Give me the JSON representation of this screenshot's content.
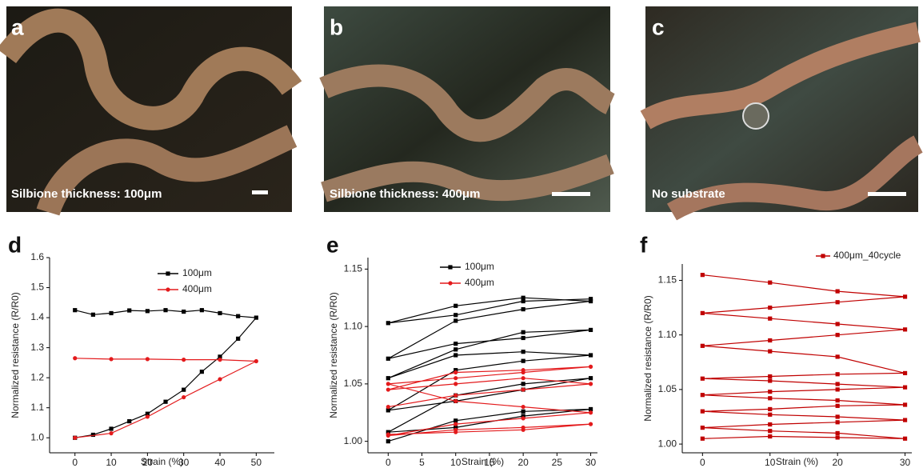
{
  "photos": [
    {
      "label": "a",
      "caption": "Silbione thickness: 100μm"
    },
    {
      "label": "b",
      "caption": "Silbione thickness: 400μm"
    },
    {
      "label": "c",
      "caption": "No substrate"
    }
  ],
  "chart_data": [
    {
      "type": "line",
      "label": "d",
      "xlabel": "Strain (%)",
      "ylabel": "Normalized resistance (R/R0)",
      "xlim": [
        -7,
        55
      ],
      "xticks": [
        0,
        10,
        20,
        30,
        40,
        50
      ],
      "ylim": [
        0.95,
        1.6
      ],
      "yticks": [
        {
          "value": 1.0,
          "label": "1.0"
        },
        {
          "value": 1.1,
          "label": "1.1"
        },
        {
          "value": 1.2,
          "label": "1.2"
        },
        {
          "value": 1.3,
          "label": "1.3"
        },
        {
          "value": 1.4,
          "label": "1.4"
        },
        {
          "value": 1.5,
          "label": "1.5"
        },
        {
          "value": 1.6,
          "label": "1.6"
        }
      ],
      "legend": "upper right",
      "series": [
        {
          "name": "100μm",
          "color": "#000000",
          "marker": "square",
          "x": [
            0,
            5,
            10,
            15,
            20,
            25,
            30,
            35,
            40,
            45,
            50,
            45,
            40,
            35,
            30,
            25,
            20,
            15,
            10,
            5,
            0
          ],
          "values": [
            1.0,
            1.01,
            1.03,
            1.055,
            1.08,
            1.12,
            1.16,
            1.22,
            1.27,
            1.33,
            1.4,
            1.405,
            1.415,
            1.425,
            1.42,
            1.425,
            1.422,
            1.424,
            1.415,
            1.41,
            1.425
          ]
        },
        {
          "name": "400μm",
          "color": "#e31a1c",
          "marker": "circle",
          "x": [
            0,
            10,
            20,
            30,
            40,
            50,
            40,
            30,
            20,
            10,
            0
          ],
          "values": [
            1.0,
            1.015,
            1.07,
            1.135,
            1.195,
            1.255,
            1.26,
            1.26,
            1.262,
            1.262,
            1.265
          ]
        }
      ]
    },
    {
      "type": "line",
      "label": "e",
      "xlabel": "Strain (%)",
      "ylabel": "Normalized resistance (R/R0)",
      "xlim": [
        -3,
        31
      ],
      "xticks": [
        0,
        5,
        10,
        15,
        20,
        25,
        30
      ],
      "ylim": [
        0.99,
        1.16
      ],
      "yticks": [
        {
          "value": 1.0,
          "label": "1.00"
        },
        {
          "value": 1.05,
          "label": "1.05"
        },
        {
          "value": 1.1,
          "label": "1.10"
        },
        {
          "value": 1.15,
          "label": "1.15"
        }
      ],
      "legend": "upper center",
      "series": [
        {
          "name": "100μm",
          "color": "#000000",
          "marker": "square",
          "x": [
            0,
            10,
            20,
            30,
            20,
            10,
            0,
            10,
            20,
            30,
            20,
            10,
            0,
            10,
            20,
            30,
            20,
            10,
            0,
            10,
            20,
            30,
            20,
            10,
            0,
            10,
            20,
            30,
            20,
            10,
            0,
            10,
            20,
            30
          ],
          "values": [
            1.0,
            1.018,
            1.026,
            1.028,
            1.022,
            1.012,
            1.008,
            1.04,
            1.05,
            1.055,
            1.045,
            1.035,
            1.027,
            1.062,
            1.07,
            1.075,
            1.078,
            1.075,
            1.055,
            1.08,
            1.095,
            1.097,
            1.09,
            1.085,
            1.072,
            1.105,
            1.115,
            1.122,
            1.125,
            1.118,
            1.103,
            1.11,
            1.122,
            1.124
          ]
        },
        {
          "name": "400μm",
          "color": "#e31a1c",
          "marker": "circle",
          "x": [
            0,
            10,
            20,
            30,
            20,
            10,
            0,
            10,
            20,
            30,
            20,
            10,
            0,
            10,
            20,
            30,
            20,
            10,
            0,
            10,
            20,
            30,
            20,
            10,
            0
          ],
          "values": [
            1.03,
            1.04,
            1.045,
            1.05,
            1.055,
            1.05,
            1.045,
            1.06,
            1.062,
            1.065,
            1.06,
            1.055,
            1.05,
            1.035,
            1.03,
            1.025,
            1.02,
            1.015,
            1.005,
            1.01,
            1.012,
            1.015,
            1.01,
            1.008,
            1.006
          ]
        }
      ]
    },
    {
      "type": "line",
      "label": "f",
      "xlabel": "Strain (%)",
      "ylabel": "Normalized resistance (R/R0)",
      "xlim": [
        -3,
        31
      ],
      "xticks": [
        0,
        10,
        20,
        30
      ],
      "ylim": [
        0.992,
        1.165
      ],
      "yticks": [
        {
          "value": 1.0,
          "label": "1.00"
        },
        {
          "value": 1.05,
          "label": "1.05"
        },
        {
          "value": 1.1,
          "label": "1.10"
        },
        {
          "value": 1.15,
          "label": "1.15"
        }
      ],
      "legend": "above",
      "series": [
        {
          "name": "400μm_40cycle",
          "color": "#c00000",
          "marker": "square",
          "x": [
            0,
            10,
            20,
            30,
            20,
            10,
            0,
            10,
            20,
            30,
            20,
            10,
            0,
            10,
            20,
            30,
            20,
            10,
            0,
            10,
            20,
            30,
            20,
            10,
            0,
            10,
            20,
            30,
            20,
            10,
            0,
            10,
            20,
            30,
            20,
            10,
            0,
            10,
            20,
            30,
            20,
            10,
            0
          ],
          "values": [
            1.005,
            1.007,
            1.006,
            1.005,
            1.01,
            1.012,
            1.015,
            1.018,
            1.02,
            1.022,
            1.025,
            1.027,
            1.03,
            1.032,
            1.035,
            1.036,
            1.04,
            1.042,
            1.045,
            1.048,
            1.05,
            1.052,
            1.055,
            1.058,
            1.06,
            1.062,
            1.064,
            1.065,
            1.08,
            1.085,
            1.09,
            1.095,
            1.1,
            1.105,
            1.11,
            1.115,
            1.12,
            1.125,
            1.13,
            1.135,
            1.14,
            1.148,
            1.155
          ]
        }
      ]
    }
  ]
}
